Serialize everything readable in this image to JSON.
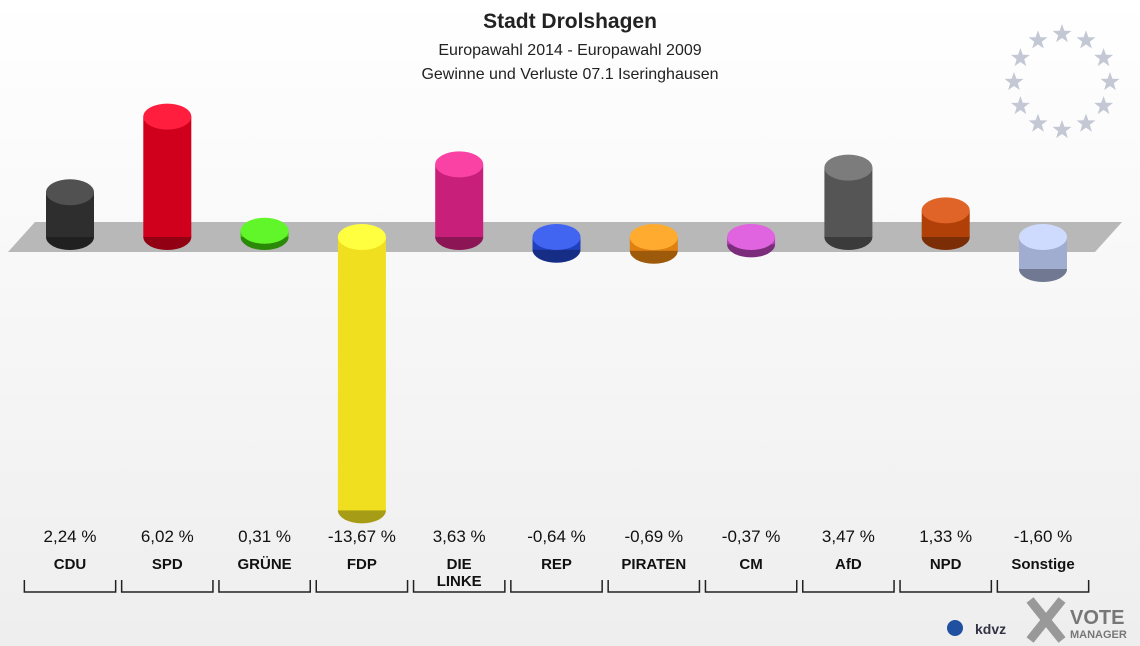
{
  "chart_data": {
    "type": "bar",
    "title": "Stadt Drolshagen",
    "subtitle": "Europawahl 2014 - Europawahl 2009",
    "subtitle2": "Gewinne und Verluste 07.1 Iseringhausen",
    "categories": [
      "CDU",
      "SPD",
      "GRÜNE",
      "FDP",
      "DIE\nLINKE",
      "REP",
      "PIRATEN",
      "CM",
      "AfD",
      "NPD",
      "Sonstige"
    ],
    "values": [
      2.24,
      6.02,
      0.31,
      -13.67,
      3.63,
      -0.64,
      -0.69,
      -0.37,
      3.47,
      1.33,
      -1.6
    ],
    "value_labels": [
      "2,24 %",
      "6,02 %",
      "0,31 %",
      "-13,67 %",
      "3,63 %",
      "-0,64 %",
      "-0,69 %",
      "-0,37 %",
      "3,47 %",
      "1,33 %",
      "-1,60 %"
    ],
    "colors": [
      "#2e2e2e",
      "#d0001c",
      "#3cc40a",
      "#efdf1e",
      "#c8207a",
      "#2040c0",
      "#e08010",
      "#b040b0",
      "#555555",
      "#b04008",
      "#a0acd0"
    ]
  },
  "logos": [
    "kdvz",
    "VOTE",
    "MANAGER"
  ]
}
